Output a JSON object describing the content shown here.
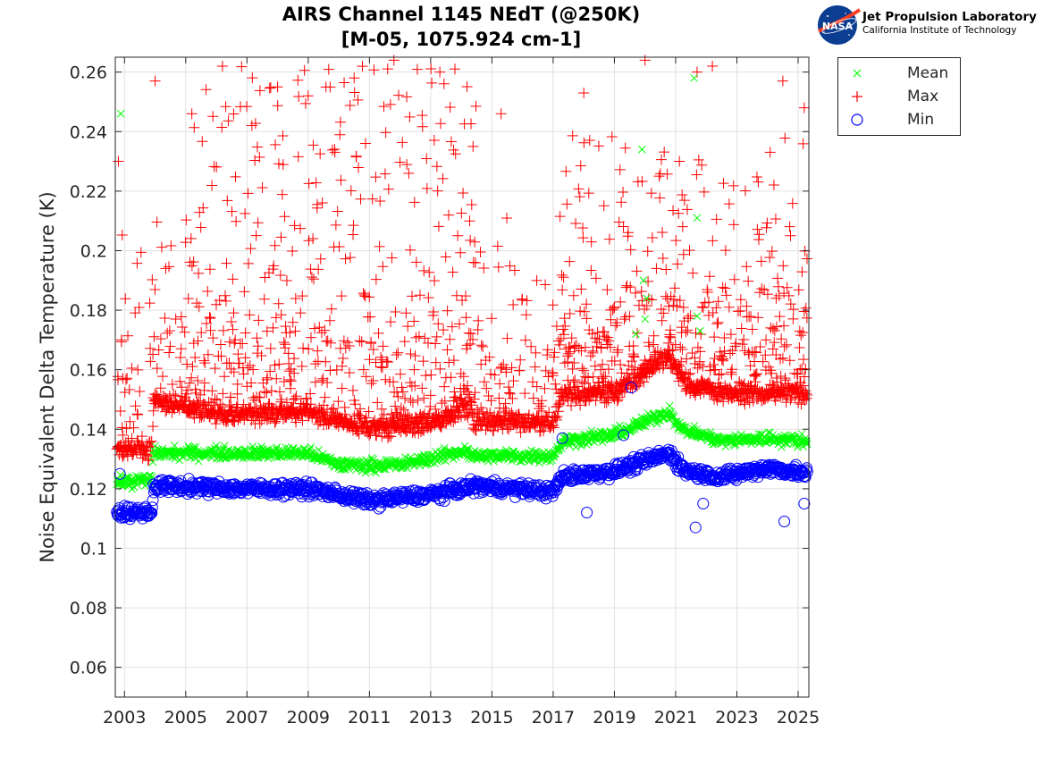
{
  "title_line1": "AIRS Channel 1145 NEdT (@250K)",
  "title_line2": "[M-05, 1075.924 cm-1]",
  "logo": {
    "agency": "NASA",
    "org_name": "Jet Propulsion Laboratory",
    "org_sub": "California Institute of Technology"
  },
  "chart_data": {
    "type": "scatter",
    "title": "AIRS Channel 1145 NEdT (@250K) [M-05, 1075.924 cm-1]",
    "xlabel": "",
    "ylabel": "Noise Equivalent Delta Temperature (K)",
    "xlim": [
      2002.7,
      2025.35
    ],
    "ylim": [
      0.05,
      0.265
    ],
    "xticks": [
      "2003",
      "2005",
      "2007",
      "2009",
      "2011",
      "2013",
      "2015",
      "2017",
      "2019",
      "2021",
      "2023",
      "2025"
    ],
    "yticks": [
      "0.06",
      "0.08",
      "0.1",
      "0.12",
      "0.14",
      "0.16",
      "0.18",
      "0.2",
      "0.22",
      "0.24",
      "0.26"
    ],
    "grid": true,
    "legend_position": "outside-top-right",
    "colors": {
      "mean": "#00ff00",
      "max": "#ff0000",
      "min": "#0000ff"
    },
    "series": [
      {
        "name": "Mean",
        "marker": "x",
        "trend": [
          [
            2002.7,
            0.122
          ],
          [
            2003.9,
            0.123
          ],
          [
            2003.95,
            0.132
          ],
          [
            2009,
            0.132
          ],
          [
            2010,
            0.128
          ],
          [
            2012,
            0.128
          ],
          [
            2014.2,
            0.133
          ],
          [
            2014.3,
            0.131
          ],
          [
            2017,
            0.131
          ],
          [
            2017.3,
            0.136
          ],
          [
            2019,
            0.138
          ],
          [
            2020.8,
            0.146
          ],
          [
            2021.2,
            0.14
          ],
          [
            2022.5,
            0.136
          ],
          [
            2024,
            0.137
          ],
          [
            2025.3,
            0.136
          ]
        ],
        "outliers": [
          [
            2002.88,
            0.246
          ],
          [
            2021.6,
            0.258
          ],
          [
            2021.7,
            0.211
          ],
          [
            2019.9,
            0.234
          ],
          [
            2019.95,
            0.19
          ],
          [
            2020.05,
            0.184
          ],
          [
            2019.7,
            0.172
          ],
          [
            2021.7,
            0.178
          ],
          [
            2021.8,
            0.173
          ],
          [
            2020.0,
            0.177
          ]
        ]
      },
      {
        "name": "Max",
        "marker": "+",
        "trend": [
          [
            2002.7,
            0.133
          ],
          [
            2003.9,
            0.133
          ],
          [
            2003.95,
            0.15
          ],
          [
            2006,
            0.145
          ],
          [
            2009,
            0.146
          ],
          [
            2011,
            0.14
          ],
          [
            2013,
            0.142
          ],
          [
            2014.3,
            0.148
          ],
          [
            2014.4,
            0.143
          ],
          [
            2017,
            0.142
          ],
          [
            2017.3,
            0.152
          ],
          [
            2019,
            0.152
          ],
          [
            2020.8,
            0.165
          ],
          [
            2021.3,
            0.155
          ],
          [
            2023,
            0.152
          ],
          [
            2025.3,
            0.152
          ]
        ],
        "outliers": [
          [
            2002.8,
            0.23
          ],
          [
            2002.9,
            0.17
          ],
          [
            2004.0,
            0.257
          ],
          [
            2005.2,
            0.246
          ],
          [
            2006.2,
            0.262
          ],
          [
            2008.0,
            0.255
          ],
          [
            2010.5,
            0.258
          ],
          [
            2011.8,
            0.264
          ],
          [
            2013.3,
            0.26
          ],
          [
            2015.3,
            0.246
          ],
          [
            2018.0,
            0.253
          ],
          [
            2020.0,
            0.264
          ],
          [
            2021.7,
            0.26
          ],
          [
            2022.2,
            0.262
          ],
          [
            2024.5,
            0.257
          ],
          [
            2025.2,
            0.248
          ]
        ]
      },
      {
        "name": "Min",
        "marker": "o",
        "trend": [
          [
            2002.7,
            0.112
          ],
          [
            2003.9,
            0.112
          ],
          [
            2003.95,
            0.121
          ],
          [
            2007,
            0.12
          ],
          [
            2009,
            0.12
          ],
          [
            2011,
            0.116
          ],
          [
            2013,
            0.118
          ],
          [
            2014.5,
            0.121
          ],
          [
            2017,
            0.119
          ],
          [
            2017.3,
            0.124
          ],
          [
            2019,
            0.126
          ],
          [
            2020.8,
            0.132
          ],
          [
            2021.3,
            0.126
          ],
          [
            2022.5,
            0.124
          ],
          [
            2024,
            0.127
          ],
          [
            2025.3,
            0.125
          ]
        ],
        "outliers": [
          [
            2002.85,
            0.125
          ],
          [
            2021.65,
            0.107
          ],
          [
            2024.55,
            0.109
          ],
          [
            2019.55,
            0.154
          ],
          [
            2017.3,
            0.137
          ],
          [
            2019.3,
            0.138
          ],
          [
            2018.1,
            0.112
          ],
          [
            2021.9,
            0.115
          ],
          [
            2025.2,
            0.115
          ]
        ]
      }
    ]
  }
}
